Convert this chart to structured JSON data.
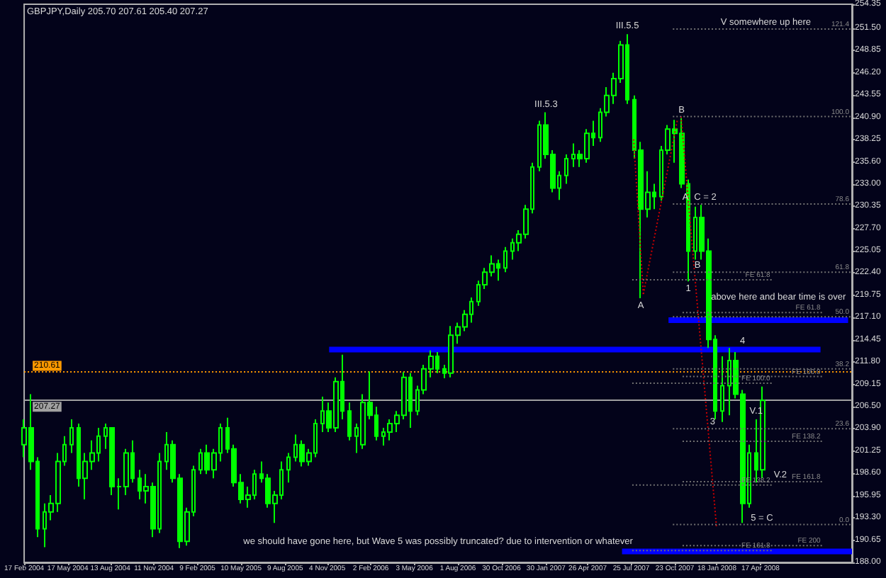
{
  "chart_data": {
    "type": "candlestick",
    "title": "GBPJPY,Daily 205.70 207.61 205.40 207.27",
    "color": "#00ff00",
    "x": [
      "2004-02-17",
      "2004-03-02",
      "2004-03-16",
      "2004-03-30",
      "2004-04-13",
      "2004-04-27",
      "2004-05-11",
      "2004-05-25",
      "2004-06-08",
      "2004-06-22",
      "2004-07-06",
      "2004-07-20",
      "2004-08-03",
      "2004-08-17",
      "2004-08-31",
      "2004-09-14",
      "2004-09-28",
      "2004-10-12",
      "2004-10-26",
      "2004-11-09",
      "2004-11-23",
      "2004-12-07",
      "2004-12-21",
      "2005-01-04",
      "2005-01-18",
      "2005-02-01",
      "2005-02-15",
      "2005-03-01",
      "2005-03-15",
      "2005-03-29",
      "2005-04-12",
      "2005-04-26",
      "2005-05-10",
      "2005-05-24",
      "2005-06-07",
      "2005-06-21",
      "2005-07-05",
      "2005-07-19",
      "2005-08-02",
      "2005-08-16",
      "2005-08-30",
      "2005-09-13",
      "2005-09-27",
      "2005-10-11",
      "2005-10-25",
      "2005-11-08",
      "2005-11-22",
      "2005-12-06",
      "2005-12-20",
      "2006-01-03",
      "2006-01-17",
      "2006-01-31",
      "2006-02-14",
      "2006-02-28",
      "2006-03-14",
      "2006-03-28",
      "2006-04-11",
      "2006-04-25",
      "2006-05-09",
      "2006-05-23",
      "2006-06-06",
      "2006-06-20",
      "2006-07-04",
      "2006-07-18",
      "2006-08-01",
      "2006-08-15",
      "2006-08-29",
      "2006-09-12",
      "2006-09-26",
      "2006-10-10",
      "2006-10-24",
      "2006-11-07",
      "2006-11-21",
      "2006-12-05",
      "2006-12-19",
      "2007-01-02",
      "2007-01-16",
      "2007-01-30",
      "2007-02-13",
      "2007-02-27",
      "2007-03-13",
      "2007-03-27",
      "2007-04-10",
      "2007-04-24",
      "2007-05-08",
      "2007-05-22",
      "2007-06-05",
      "2007-06-19",
      "2007-07-03",
      "2007-07-17",
      "2007-07-31",
      "2007-08-14",
      "2007-08-28",
      "2007-09-11",
      "2007-09-25",
      "2007-10-09",
      "2007-10-23",
      "2007-11-06",
      "2007-11-20",
      "2007-12-04",
      "2007-12-18",
      "2008-01-01",
      "2008-01-15",
      "2008-01-29",
      "2008-02-12",
      "2008-02-26",
      "2008-03-11",
      "2008-03-25",
      "2008-04-08",
      "2008-04-22"
    ],
    "ohlc": [
      [
        202,
        205,
        200.5,
        204
      ],
      [
        204,
        208,
        199,
        200
      ],
      [
        200,
        200.5,
        191,
        192
      ],
      [
        192,
        195,
        189.8,
        194
      ],
      [
        194,
        196,
        193,
        195
      ],
      [
        195,
        201,
        194,
        200
      ],
      [
        200,
        203,
        199.5,
        202
      ],
      [
        202,
        205,
        201,
        204
      ],
      [
        204,
        204.5,
        197,
        198
      ],
      [
        198,
        201,
        195.5,
        200
      ],
      [
        200,
        202.5,
        199,
        201
      ],
      [
        201,
        204,
        200,
        203
      ],
      [
        203,
        204.5,
        201.5,
        204
      ],
      [
        204,
        204,
        196,
        197
      ],
      [
        197,
        198,
        194.3,
        197
      ],
      [
        197,
        201.5,
        196,
        201
      ],
      [
        201,
        202.5,
        197.5,
        198
      ],
      [
        198,
        199,
        195.5,
        196.5
      ],
      [
        196.5,
        198.5,
        195,
        197
      ],
      [
        197,
        197.5,
        191,
        192
      ],
      [
        192,
        201,
        191.5,
        200
      ],
      [
        200,
        203.5,
        199,
        202
      ],
      [
        202,
        202.5,
        197.5,
        198
      ],
      [
        198,
        198.5,
        189.7,
        190.5
      ],
      [
        190.5,
        194.5,
        190,
        194
      ],
      [
        194,
        199.5,
        193.5,
        199
      ],
      [
        199,
        201.5,
        198.5,
        201
      ],
      [
        201,
        202,
        198.5,
        199
      ],
      [
        199,
        201.5,
        198,
        201
      ],
      [
        201,
        204.5,
        200,
        204
      ],
      [
        204,
        205.2,
        201,
        201.5
      ],
      [
        201.5,
        202,
        197,
        197.5
      ],
      [
        197.5,
        198.5,
        195,
        195.5
      ],
      [
        195.5,
        197,
        194.5,
        196
      ],
      [
        196,
        199,
        195.5,
        198.5
      ],
      [
        198.5,
        200,
        197.5,
        198
      ],
      [
        198,
        198.5,
        194.5,
        195
      ],
      [
        195,
        196.5,
        192.7,
        196
      ],
      [
        196,
        200,
        195.5,
        199
      ],
      [
        199,
        201,
        197.5,
        200.5
      ],
      [
        200.5,
        203.2,
        200,
        202
      ],
      [
        202,
        202.5,
        199.4,
        200
      ],
      [
        200,
        201.5,
        199.5,
        201
      ],
      [
        201,
        205,
        200.5,
        204.5
      ],
      [
        204.5,
        207.7,
        203.5,
        206
      ],
      [
        206,
        207,
        203.5,
        204
      ],
      [
        204,
        210,
        203.5,
        209.5
      ],
      [
        209.5,
        212.7,
        205,
        206
      ],
      [
        206,
        207,
        202.5,
        203
      ],
      [
        203,
        204.5,
        201,
        204
      ],
      [
        202,
        208,
        201.5,
        207
      ],
      [
        207,
        210.7,
        205,
        205.5
      ],
      [
        205.5,
        206.5,
        202.5,
        203
      ],
      [
        203,
        204,
        201.9,
        203.5
      ],
      [
        203.5,
        205,
        202.5,
        204.5
      ],
      [
        204.5,
        206,
        203.5,
        205.5
      ],
      [
        205.5,
        210.6,
        205,
        210
      ],
      [
        210,
        210.5,
        204,
        206
      ],
      [
        206,
        209,
        205.5,
        208.5
      ],
      [
        208.5,
        211.5,
        208,
        211
      ],
      [
        211,
        213.2,
        210,
        212.5
      ],
      [
        212.5,
        213,
        210.5,
        211
      ],
      [
        211,
        211.5,
        209.9,
        210.5
      ],
      [
        210.5,
        216.1,
        210,
        215
      ],
      [
        215,
        216.5,
        214,
        216
      ],
      [
        216,
        218,
        215.5,
        217.5
      ],
      [
        217.5,
        219.5,
        216.5,
        219
      ],
      [
        219,
        221.5,
        218.5,
        221
      ],
      [
        221,
        223,
        220.5,
        222.5
      ],
      [
        222.5,
        224.5,
        222,
        223.5
      ],
      [
        223.5,
        224,
        221.5,
        223
      ],
      [
        223,
        225.5,
        222.5,
        225
      ],
      [
        225,
        226.5,
        224,
        226
      ],
      [
        226,
        227.5,
        225,
        227
      ],
      [
        227,
        230.5,
        226.5,
        230
      ],
      [
        230,
        235.5,
        229.5,
        235
      ],
      [
        235,
        240.5,
        234.5,
        240
      ],
      [
        240,
        241.5,
        236,
        236.5
      ],
      [
        236.5,
        237,
        232,
        232.5
      ],
      [
        232.5,
        234.5,
        231.1,
        234
      ],
      [
        234,
        236.5,
        233,
        236
      ],
      [
        236,
        237.8,
        235,
        236.5
      ],
      [
        236.5,
        237,
        235,
        236
      ],
      [
        236,
        239.5,
        235.5,
        239
      ],
      [
        239,
        240.5,
        237.5,
        238.5
      ],
      [
        238.5,
        242,
        238,
        241.5
      ],
      [
        241.5,
        244.5,
        241,
        243.5
      ],
      [
        243.5,
        246.2,
        242.5,
        245.5
      ],
      [
        245.5,
        250,
        245,
        249.5
      ],
      [
        249.5,
        250.8,
        242.5,
        243
      ],
      [
        243,
        243.5,
        236,
        237
      ],
      [
        237,
        238,
        219.4,
        230
      ],
      [
        230,
        234.5,
        229,
        232
      ],
      [
        232,
        233,
        230,
        231.5
      ],
      [
        231.5,
        237.5,
        231,
        237
      ],
      [
        237,
        240,
        236.5,
        239.5
      ],
      [
        239.5,
        240.6,
        235.5,
        239
      ],
      [
        239,
        240.8,
        232.5,
        233
      ],
      [
        233,
        233.5,
        221.4,
        225
      ],
      [
        225,
        230.3,
        224,
        229
      ],
      [
        229,
        230.5,
        224,
        225
      ],
      [
        225,
        226.5,
        213.5,
        214.5
      ],
      [
        214.5,
        215,
        205,
        206
      ],
      [
        206,
        212.5,
        204.7,
        209
      ],
      [
        209,
        213.5,
        205.5,
        212
      ],
      [
        212,
        213,
        207.5,
        208
      ],
      [
        208,
        208.5,
        192.7,
        195
      ],
      [
        195,
        202,
        194.5,
        201
      ],
      [
        201,
        205,
        197.5,
        199
      ],
      [
        199,
        208.9,
        198,
        207.27
      ]
    ],
    "series": [
      {
        "type": "line",
        "color": "#0000ff",
        "line_style": "solid",
        "x": [
          "2005-11-08",
          "2008-08-19"
        ],
        "values": [
          213.3,
          213.3
        ]
      },
      {
        "type": "line",
        "color": "#0000ff",
        "line_style": "solid",
        "x": [
          "2007-10-10",
          "2008-10-15"
        ],
        "values": [
          216.8,
          216.8
        ]
      },
      {
        "type": "line",
        "color": "#0000ff",
        "line_style": "solid",
        "x": [
          "2007-07-06",
          "2008-10-23"
        ],
        "values": [
          189.3,
          189.3
        ]
      },
      {
        "type": "line",
        "color": "#cc0000",
        "line_style": "dotted",
        "x": [
          "2007-07-30",
          "2007-08-19"
        ],
        "values": [
          238.3,
          219.9
        ]
      },
      {
        "type": "line",
        "color": "#cc0000",
        "line_style": "dotted",
        "x": [
          "2007-08-19",
          "2007-10-28"
        ],
        "values": [
          219.9,
          240.5
        ]
      },
      {
        "type": "line",
        "color": "#cc0000",
        "line_style": "dotted",
        "x": [
          "2007-11-05",
          "2008-01-17"
        ],
        "values": [
          241.0,
          192.3
        ]
      },
      {
        "type": "line",
        "name": "121.4",
        "color": "#707070",
        "line_style": "dotted",
        "x": [
          "2007-10-19",
          "2008-10-20"
        ],
        "values": [
          251.4,
          251.4
        ]
      },
      {
        "type": "line",
        "name": "100.0",
        "color": "#707070",
        "line_style": "dotted",
        "x": [
          "2007-10-19",
          "2008-10-20"
        ],
        "values": [
          241.0,
          241.0
        ]
      },
      {
        "type": "line",
        "name": "78.6",
        "color": "#707070",
        "line_style": "dotted",
        "x": [
          "2007-10-19",
          "2008-10-20"
        ],
        "values": [
          230.6,
          230.6
        ]
      },
      {
        "type": "line",
        "name": "61.8",
        "color": "#707070",
        "line_style": "dotted",
        "x": [
          "2007-10-19",
          "2008-10-20"
        ],
        "values": [
          222.5,
          222.5
        ]
      },
      {
        "type": "line",
        "name": "50.0",
        "color": "#707070",
        "line_style": "dotted",
        "x": [
          "2007-10-19",
          "2008-10-20"
        ],
        "values": [
          217.2,
          217.2
        ]
      },
      {
        "type": "line",
        "name": "38.2",
        "color": "#707070",
        "line_style": "dotted",
        "x": [
          "2007-10-19",
          "2008-10-20"
        ],
        "values": [
          211.0,
          211.0
        ]
      },
      {
        "type": "line",
        "name": "23.6",
        "color": "#707070",
        "line_style": "dotted",
        "x": [
          "2007-10-19",
          "2008-10-20"
        ],
        "values": [
          203.9,
          203.9
        ]
      },
      {
        "type": "line",
        "name": "0.0",
        "color": "#707070",
        "line_style": "dotted",
        "x": [
          "2007-10-19",
          "2008-10-20"
        ],
        "values": [
          192.5,
          192.5
        ]
      },
      {
        "type": "line",
        "name": "FE 61.8",
        "color": "#707070",
        "line_style": "dotted",
        "x": [
          "2007-11-08",
          "2008-08-22"
        ],
        "values": [
          217.7,
          217.7
        ]
      },
      {
        "type": "line",
        "name": "FE 100.0",
        "color": "#707070",
        "line_style": "dotted",
        "x": [
          "2007-11-08",
          "2008-08-22"
        ],
        "values": [
          210.1,
          210.1
        ]
      },
      {
        "type": "line",
        "name": "FE 138.2",
        "color": "#707070",
        "line_style": "dotted",
        "x": [
          "2007-11-08",
          "2008-08-22"
        ],
        "values": [
          202.4,
          202.4
        ]
      },
      {
        "type": "line",
        "name": "FE 161.8",
        "color": "#707070",
        "line_style": "dotted",
        "x": [
          "2007-11-08",
          "2008-08-22"
        ],
        "values": [
          197.6,
          197.6
        ]
      },
      {
        "type": "line",
        "name": "FE 200",
        "color": "#707070",
        "line_style": "dotted",
        "x": [
          "2007-11-08",
          "2008-08-22"
        ],
        "values": [
          190.0,
          190.0
        ]
      },
      {
        "type": "line",
        "name": "FE 61.8",
        "color": "#707070",
        "line_style": "dotted",
        "x": [
          "2007-07-27",
          "2008-05-10"
        ],
        "values": [
          221.6,
          221.6
        ]
      },
      {
        "type": "line",
        "name": "FE 100.0",
        "color": "#707070",
        "line_style": "dotted",
        "x": [
          "2007-07-27",
          "2008-05-10"
        ],
        "values": [
          209.3,
          209.3
        ]
      },
      {
        "type": "line",
        "name": "FE 138.2",
        "color": "#707070",
        "line_style": "dotted",
        "x": [
          "2007-07-27",
          "2008-05-10"
        ],
        "values": [
          197.2,
          197.2
        ]
      },
      {
        "type": "line",
        "name": "FE 161.8",
        "color": "#707070",
        "line_style": "dotted",
        "x": [
          "2007-07-27",
          "2008-05-10"
        ],
        "values": [
          189.4,
          189.4
        ]
      }
    ],
    "ref_lines": [
      {
        "axis": "y",
        "value": 210.61,
        "label": "210.61",
        "color": "#ff9900",
        "line_style": "dotted"
      },
      {
        "axis": "y",
        "value": 207.27,
        "label": "207.27",
        "color": "#a0a0a0",
        "line_style": "solid"
      }
    ],
    "annotations": [
      {
        "text": "V somewhere up here",
        "x": "2008-04-28",
        "y": 251.4
      },
      {
        "text": "III.5.5",
        "x": "2007-07-17",
        "y": 250.8
      },
      {
        "text": "III.5.3",
        "x": "2007-01-30",
        "y": 241.5
      },
      {
        "text": "B",
        "x": "2007-11-06",
        "y": 240.8
      },
      {
        "text": "C = 2",
        "x": "2007-12-25",
        "y": 230.6
      },
      {
        "text": "A",
        "x": "2007-11-14",
        "y": 230.6
      },
      {
        "text": "B",
        "x": "2007-12-09",
        "y": 222.5
      },
      {
        "text": "A",
        "x": "2007-08-14",
        "y": 219.4
      },
      {
        "text": "1",
        "x": "2007-11-20",
        "y": 221.4
      },
      {
        "text": "above here and bear time is over",
        "x": "2008-05-24",
        "y": 217.7
      },
      {
        "text": "4",
        "x": "2008-03-11",
        "y": 213.3
      },
      {
        "text": "3",
        "x": "2008-01-09",
        "y": 203.9
      },
      {
        "text": "V.1",
        "x": "2008-04-08",
        "y": 205
      },
      {
        "text": "V.2",
        "x": "2008-05-28",
        "y": 197.6
      },
      {
        "text": "5 = C",
        "x": "2008-04-20",
        "y": 192.5
      },
      "we should have gone here, but Wave 5 was possibly truncated? due to intervention or whatever"
    ],
    "xlim": [
      "2004-02-17",
      "2008-10-23"
    ],
    "xticks": [
      {
        "value": "2004-02-17",
        "label": "17 Feb 2004"
      },
      {
        "value": "2004-05-17",
        "label": "17 May 2004"
      },
      {
        "value": "2004-08-13",
        "label": "13 Aug 2004"
      },
      {
        "value": "2004-11-11",
        "label": "11 Nov 2004"
      },
      {
        "value": "2005-02-09",
        "label": "9 Feb 2005"
      },
      {
        "value": "2005-05-10",
        "label": "10 May 2005"
      },
      {
        "value": "2005-08-09",
        "label": "9 Aug 2005"
      },
      {
        "value": "2005-11-04",
        "label": "4 Nov 2005"
      },
      {
        "value": "2006-02-02",
        "label": "2 Feb 2006"
      },
      {
        "value": "2006-05-03",
        "label": "3 May 2006"
      },
      {
        "value": "2006-08-01",
        "label": "1 Aug 2006"
      },
      {
        "value": "2006-10-30",
        "label": "30 Oct 2006"
      },
      {
        "value": "2007-01-30",
        "label": "30 Jan 2007"
      },
      {
        "value": "2007-04-26",
        "label": "26 Apr 2007"
      },
      {
        "value": "2007-07-25",
        "label": "25 Jul 2007"
      },
      {
        "value": "2007-10-23",
        "label": "23 Oct 2007"
      },
      {
        "value": "2008-01-18",
        "label": "18 Jan 2008"
      },
      {
        "value": "2008-04-17",
        "label": "17 Apr 2008"
      }
    ],
    "ylim": [
      188,
      254.35
    ],
    "yticks": [
      {
        "value": 188,
        "label": "188.00"
      },
      {
        "value": 190.65,
        "label": "190.65"
      },
      {
        "value": 193.3,
        "label": "193.30"
      },
      {
        "value": 195.95,
        "label": "195.95"
      },
      {
        "value": 198.6,
        "label": "198.60"
      },
      {
        "value": 201.25,
        "label": "201.25"
      },
      {
        "value": 203.9,
        "label": "203.90"
      },
      {
        "value": 206.5,
        "label": "206.50"
      },
      {
        "value": 209.15,
        "label": "209.15"
      },
      {
        "value": 211.8,
        "label": "211.80"
      },
      {
        "value": 214.45,
        "label": "214.45"
      },
      {
        "value": 217.1,
        "label": "217.10"
      },
      {
        "value": 219.75,
        "label": "219.75"
      },
      {
        "value": 222.4,
        "label": "222.40"
      },
      {
        "value": 225.05,
        "label": "225.05"
      },
      {
        "value": 227.7,
        "label": "227.70"
      },
      {
        "value": 230.35,
        "label": "230.35"
      },
      {
        "value": 233,
        "label": "233.00"
      },
      {
        "value": 235.6,
        "label": "235.60"
      },
      {
        "value": 238.25,
        "label": "238.25"
      },
      {
        "value": 240.9,
        "label": "240.90"
      },
      {
        "value": 243.55,
        "label": "243.55"
      },
      {
        "value": 246.2,
        "label": "246.20"
      },
      {
        "value": 248.85,
        "label": "248.85"
      },
      {
        "value": 251.5,
        "label": "251.50"
      },
      {
        "value": 254.35,
        "label": "254.35"
      }
    ]
  }
}
